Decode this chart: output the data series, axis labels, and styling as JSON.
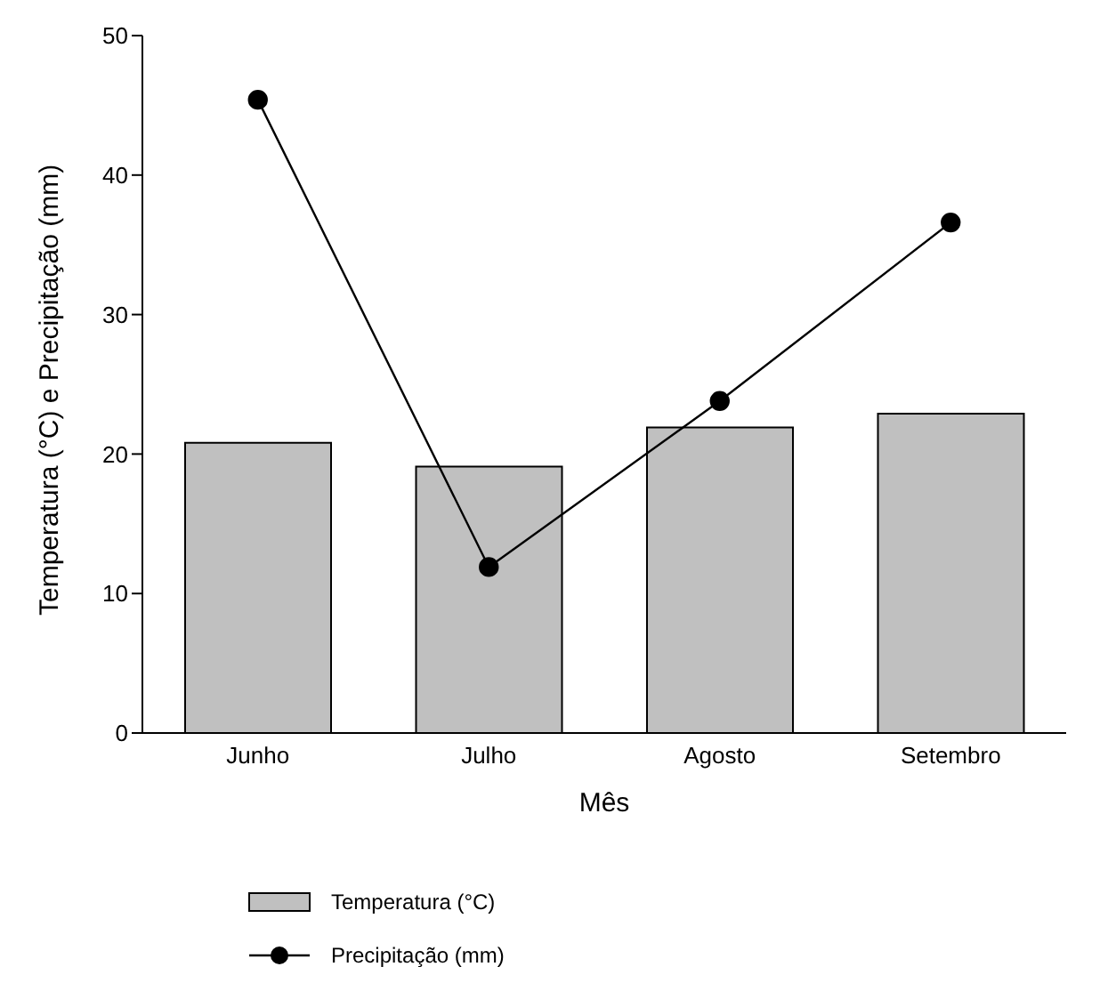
{
  "chart_data": {
    "type": "bar",
    "xlabel": "Mês",
    "ylabel": "Temperatura (°C) e Precipitação (mm)",
    "categories": [
      "Junho",
      "Julho",
      "Agosto",
      "Setembro"
    ],
    "series": [
      {
        "name": "Temperatura (°C)",
        "color": "#c0c0c0",
        "values": [
          20.8,
          19.1,
          21.9,
          22.9
        ]
      },
      {
        "name": "Precipitação (mm)",
        "type": "line",
        "color": "#000000",
        "values": [
          45.4,
          11.9,
          23.8,
          36.6
        ],
        "marker": "circle"
      }
    ],
    "ylim": [
      0,
      50
    ],
    "yticks": [
      0,
      10,
      20,
      30,
      40,
      50
    ],
    "grid": false,
    "legend": "bottom left"
  }
}
